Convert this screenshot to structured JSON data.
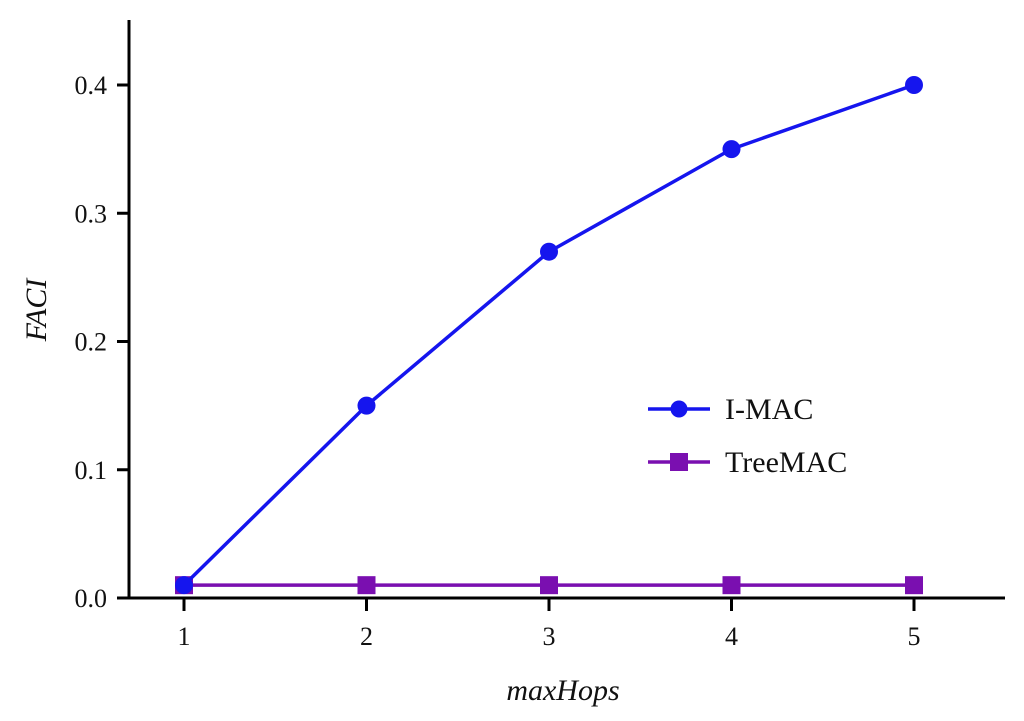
{
  "chart_data": {
    "type": "line",
    "x": [
      1,
      2,
      3,
      4,
      5
    ],
    "xlabel": "maxHops",
    "ylabel": "FACI",
    "xlim": [
      0.75,
      5.5
    ],
    "ylim": [
      0,
      0.45
    ],
    "xticks": [
      "1",
      "2",
      "3",
      "4",
      "5"
    ],
    "yticks": [
      "0.0",
      "0.1",
      "0.2",
      "0.3",
      "0.4"
    ],
    "ytick_values": [
      0,
      0.1,
      0.2,
      0.3,
      0.4
    ],
    "grid": false,
    "legend_position": "center-right",
    "series": [
      {
        "name": "I-MAC",
        "values": [
          0.01,
          0.15,
          0.27,
          0.35,
          0.4
        ],
        "color": "#1515ee",
        "marker": "circle"
      },
      {
        "name": "TreeMAC",
        "values": [
          0.01,
          0.01,
          0.01,
          0.01,
          0.01
        ],
        "color": "#7a0fb0",
        "marker": "square"
      }
    ]
  }
}
